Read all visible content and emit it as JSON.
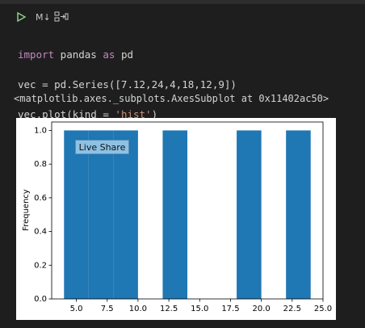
{
  "toolbar": {
    "markdown": "M↓"
  },
  "code": {
    "lines": [
      [
        "import",
        " pandas ",
        "as",
        " pd"
      ],
      [
        "vec = pd.Series([7.12,24,4,18,12,9])"
      ],
      [
        "vec.plot(kind = ",
        "'hist'",
        ")"
      ]
    ]
  },
  "output": {
    "text": "<matplotlib.axes._subplots.AxesSubplot at 0x11402ac50>"
  },
  "live_share": {
    "label": "Live Share"
  },
  "chart_data": {
    "type": "histogram",
    "ylabel": "Frequency",
    "bins": [
      4,
      6,
      8,
      10,
      12,
      14,
      16,
      18,
      20,
      22,
      24
    ],
    "counts": [
      1,
      1,
      1,
      0,
      1,
      0,
      0,
      1,
      0,
      1
    ],
    "color": "#1f77b4",
    "xlim": [
      3,
      25
    ],
    "xticks": [
      {
        "value": 5,
        "label": "5.0"
      },
      {
        "value": 7.5,
        "label": "7.5"
      },
      {
        "value": 10,
        "label": "10.0"
      },
      {
        "value": 12.5,
        "label": "12.5"
      },
      {
        "value": 15,
        "label": "15.0"
      },
      {
        "value": 17.5,
        "label": "17.5"
      },
      {
        "value": 20,
        "label": "20.0"
      },
      {
        "value": 22.5,
        "label": "22.5"
      },
      {
        "value": 25,
        "label": "25.0"
      }
    ],
    "ylim": [
      0,
      1.05
    ],
    "yticks": [
      {
        "value": 0,
        "label": "0.0"
      },
      {
        "value": 0.2,
        "label": "0.2"
      },
      {
        "value": 0.4,
        "label": "0.4"
      },
      {
        "value": 0.6,
        "label": "0.6"
      },
      {
        "value": 0.8,
        "label": "0.8"
      },
      {
        "value": 1,
        "label": "1.0"
      }
    ],
    "grid": false
  }
}
